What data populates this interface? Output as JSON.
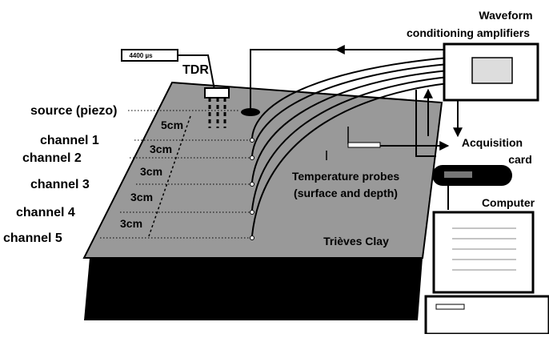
{
  "devices": {
    "waveform": [
      "Waveform",
      "conditioning amplifiers"
    ],
    "tdr": "TDR",
    "tdr_display": "4400 µs",
    "acquisition": [
      "Acquisition",
      "card"
    ],
    "computer": "Computer",
    "temperature": [
      "Temperature probes",
      "(surface and depth)"
    ]
  },
  "sample": {
    "name": "Trièves Clay",
    "source": "source (piezo)",
    "channels": [
      "channel 1",
      "channel 2",
      "channel 3",
      "channel 4",
      "channel 5"
    ],
    "spacings": [
      "5cm",
      "3cm",
      "3cm",
      "3cm",
      "3cm"
    ]
  }
}
